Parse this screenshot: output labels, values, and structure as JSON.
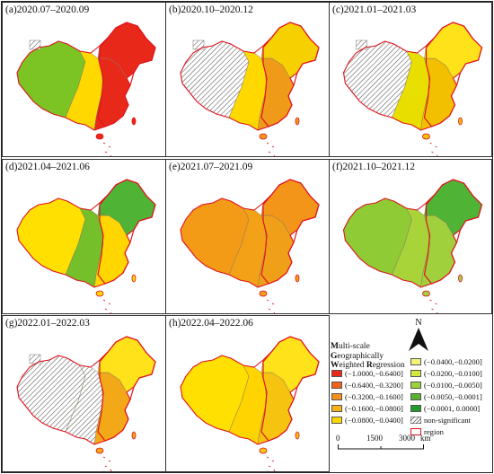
{
  "panels": [
    {
      "label": "(a)2020.07–2020.09",
      "west": "#7cc424",
      "mid": "#ffd800",
      "east": "#e8291a",
      "ne": "#e8291a",
      "ns": true
    },
    {
      "label": "(b)2020.10–2020.12",
      "west": "#ffffff",
      "mid": "#ffd800",
      "east": "#f09a1a",
      "ne": "#f6d000",
      "ns": true
    },
    {
      "label": "(c)2021.01–2021.03",
      "west": "#ffffff",
      "mid": "#e8de00",
      "east": "#f3c000",
      "ne": "#ffe21a",
      "ns": true
    },
    {
      "label": "(d)2021.04–2021.06",
      "west": "#ffe000",
      "mid": "#74bf2a",
      "east": "#ffd600",
      "ne": "#4fb335",
      "ns": false
    },
    {
      "label": "(e)2021.07–2021.09",
      "west": "#f39a16",
      "mid": "#f3a116",
      "east": "#f0a018",
      "ne": "#f29518",
      "ns": false
    },
    {
      "label": "(f)2021.10–2021.12",
      "west": "#8fcb34",
      "mid": "#a8d43a",
      "east": "#a0d03c",
      "ne": "#4fb335",
      "ns": false
    },
    {
      "label": "(g)2022.01–2022.03",
      "west": "#ffffff",
      "mid": "#ffffff",
      "east": "#f3a818",
      "ne": "#ffe21a",
      "ns": true
    },
    {
      "label": "(h)2022.04–2022.06",
      "west": "#ffe000",
      "mid": "#ffd400",
      "east": "#f6c410",
      "ne": "#ffe21a",
      "ns": false
    }
  ],
  "legend": {
    "title_line1_bold": "M",
    "title_line1_rest": "ulti-scale",
    "title_line2_bold": "G",
    "title_line2_rest": "eographically",
    "title_line3_bold_a": "W",
    "title_line3_rest_a": "eighted ",
    "title_line3_bold_b": "R",
    "title_line3_rest_b": "egression",
    "left_classes": [
      {
        "label": "(−1.0000,−0.6400]",
        "color": "#e8291a"
      },
      {
        "label": "(−0.6400,−0.3200]",
        "color": "#f2621b"
      },
      {
        "label": "(−0.3200,−0.1600]",
        "color": "#f3911c"
      },
      {
        "label": "(−0.1600,−0.0800]",
        "color": "#f7b316"
      },
      {
        "label": "(−0.0800,−0.0400]",
        "color": "#ffd800"
      }
    ],
    "right_classes": [
      {
        "label": "(−0.0400,−0.0200]",
        "color": "#f4f27a"
      },
      {
        "label": "(−0.0200,−0.0100]",
        "color": "#d3e63e"
      },
      {
        "label": "(−0.0100,−0.0050]",
        "color": "#9cd23a"
      },
      {
        "label": "(−0.0050,−0.0001]",
        "color": "#58b332"
      },
      {
        "label": "(−0.0001, 0.0000]",
        "color": "#239a2c"
      }
    ],
    "nonsig_label": "non-significant",
    "region_label": "region",
    "region_color": "#e0141e",
    "north_label": "N",
    "scale_ticks": [
      "0",
      "1500",
      "3000"
    ],
    "scale_unit": "km"
  }
}
